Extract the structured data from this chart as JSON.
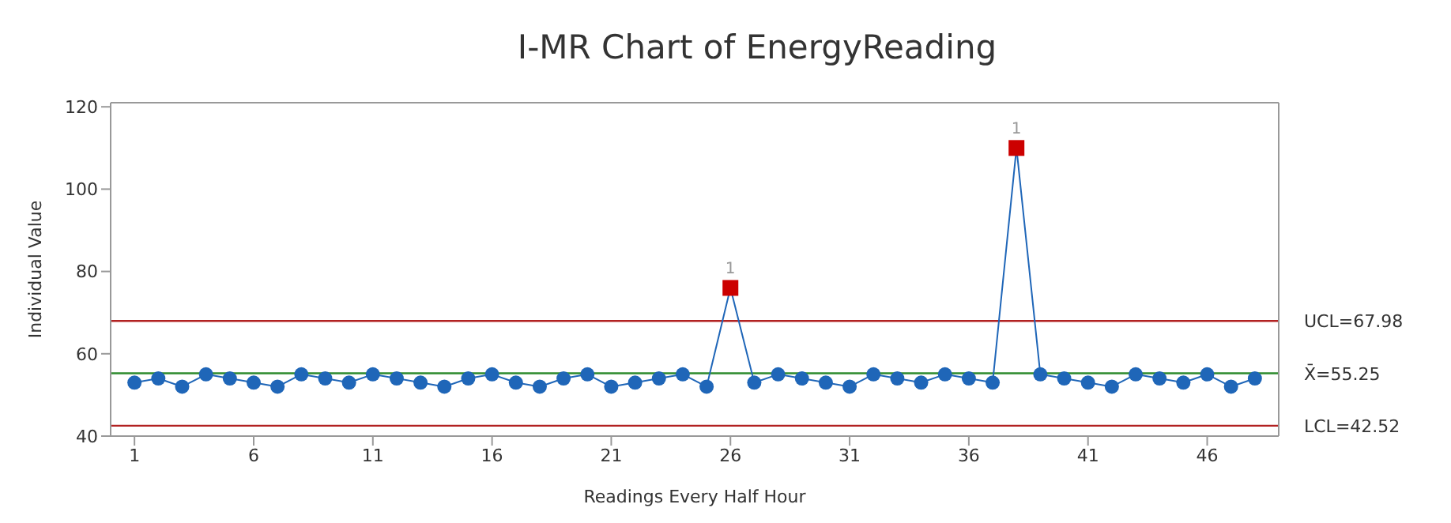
{
  "chart_data": {
    "type": "line",
    "title": "I-MR Chart of EnergyReading",
    "xlabel": "Readings Every Half Hour",
    "ylabel": "Individual Value",
    "x": [
      1,
      2,
      3,
      4,
      5,
      6,
      7,
      8,
      9,
      10,
      11,
      12,
      13,
      14,
      15,
      16,
      17,
      18,
      19,
      20,
      21,
      22,
      23,
      24,
      25,
      26,
      27,
      28,
      29,
      30,
      31,
      32,
      33,
      34,
      35,
      36,
      37,
      38,
      39,
      40,
      41,
      42,
      43,
      44,
      45,
      46,
      47,
      48
    ],
    "series": [
      {
        "color": "#1f66b8",
        "marker": "circle",
        "values": [
          53,
          54,
          52,
          55,
          54,
          53,
          52,
          55,
          54,
          53,
          55,
          54,
          53,
          52,
          54,
          55,
          53,
          52,
          54,
          55,
          52,
          53,
          54,
          55,
          52,
          76,
          53,
          55,
          54,
          53,
          52,
          55,
          54,
          53,
          55,
          54,
          53,
          110,
          55,
          54,
          53,
          52,
          55,
          54,
          53,
          55,
          52,
          54
        ]
      },
      {
        "type": "scatter",
        "color": "#cc0000",
        "marker": "square",
        "x": [
          26,
          38
        ],
        "values": [
          76,
          110
        ]
      }
    ],
    "xlim": [
      0,
      49
    ],
    "xticks": [
      1,
      6,
      11,
      16,
      21,
      26,
      31,
      36,
      41,
      46
    ],
    "ylim": [
      40,
      121
    ],
    "yticks": [
      40,
      60,
      80,
      100,
      120
    ],
    "ref_lines": [
      {
        "axis": "y",
        "value": 67.98,
        "label": "UCL=67.98",
        "color": "#b22222"
      },
      {
        "axis": "y",
        "value": 55.25,
        "label": "X̄=55.25",
        "color": "#2e8b2e"
      },
      {
        "axis": "y",
        "value": 42.52,
        "label": "LCL=42.52",
        "color": "#b22222"
      }
    ],
    "annotations": [
      {
        "text": "1",
        "x": 26,
        "y": 76
      },
      {
        "text": "1",
        "x": 38,
        "y": 110
      }
    ],
    "grid": false,
    "legend": false
  }
}
